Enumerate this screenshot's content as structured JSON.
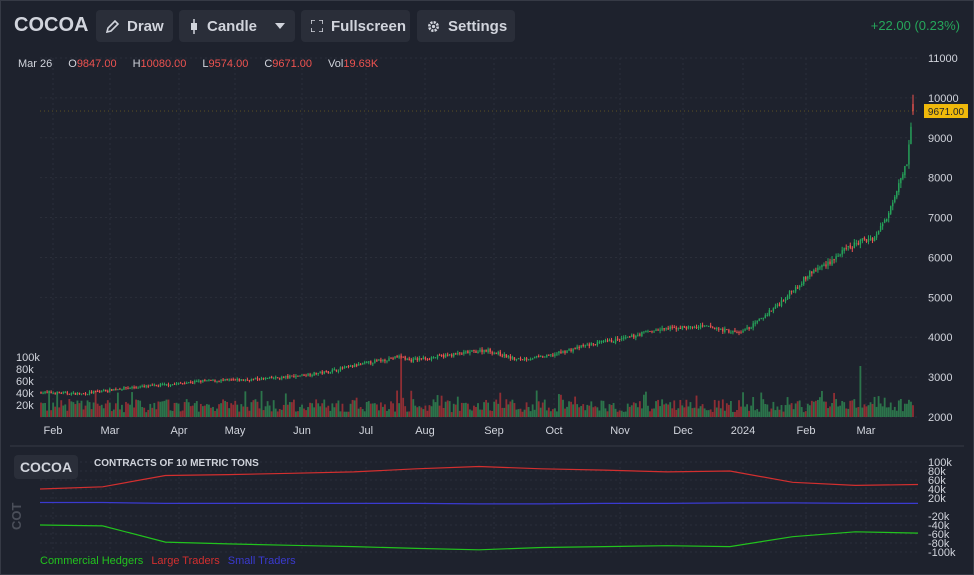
{
  "header": {
    "symbol": "COCOA",
    "draw_label": "Draw",
    "candle_label": "Candle",
    "fullscreen_label": "Fullscreen",
    "settings_label": "Settings",
    "change": "+22.00 (0.23%)"
  },
  "ohlc": {
    "date": "Mar 26",
    "o_label": "O",
    "o": "9847.00",
    "h_label": "H",
    "h": "10080.00",
    "l_label": "L",
    "l": "9574.00",
    "c_label": "C",
    "c": "9671.00",
    "vol_label": "Vol",
    "vol": "19.68K"
  },
  "last_price_tag": "9671.00",
  "colors": {
    "background": "#1e222d",
    "up": "#26a65b",
    "down": "#ef5350",
    "price_tag": "#f0b90b",
    "commercial": "#22c31e",
    "large": "#d32f2f",
    "small": "#3a3ad0"
  },
  "cot": {
    "badge": "COCOA",
    "title": "CONTRACTS OF 10 METRIC TONS",
    "side_label": "COT",
    "legend": [
      "Commercial Hedgers",
      "Large Traders",
      "Small Traders"
    ]
  },
  "chart_data": [
    {
      "type": "candlestick",
      "title": "COCOA",
      "x_tick_labels": [
        "Feb",
        "Mar",
        "Apr",
        "May",
        "Jun",
        "Jul",
        "Aug",
        "Sep",
        "Oct",
        "Nov",
        "Dec",
        "2024",
        "Feb",
        "Mar"
      ],
      "y_ticks": [
        2000,
        3000,
        4000,
        5000,
        6000,
        7000,
        8000,
        9000,
        10000,
        11000
      ],
      "ylim": [
        2000,
        11000
      ],
      "volume_ticks": [
        "20k",
        "40k",
        "60k",
        "80k",
        "100k"
      ],
      "volume_ylim": [
        0,
        100000
      ],
      "close_path": [
        [
          "Feb",
          2600
        ],
        [
          "Mar",
          2700
        ],
        [
          "Apr",
          2850
        ],
        [
          "May",
          2950
        ],
        [
          "Jun",
          3000
        ],
        [
          "Jul",
          3350
        ],
        [
          "Aug",
          3450
        ],
        [
          "Sep",
          3600
        ],
        [
          "Oct",
          3450
        ],
        [
          "Nov",
          3800
        ],
        [
          "Dec",
          4200
        ],
        [
          "2024",
          4250
        ],
        [
          "Feb",
          5500
        ],
        [
          "Mar",
          6200
        ],
        [
          "Mar 26",
          9671
        ]
      ],
      "last": {
        "open": 9847,
        "high": 10080,
        "low": 9574,
        "close": 9671,
        "volume": 19680
      }
    },
    {
      "type": "line",
      "title": "CONTRACTS OF 10 METRIC TONS",
      "y_ticks": [
        "100k",
        "80k",
        "60k",
        "40k",
        "20k",
        "-20k",
        "-40k",
        "-60k",
        "-80k",
        "-100k"
      ],
      "ylim": [
        -100000,
        100000
      ],
      "series": [
        {
          "name": "Large Traders",
          "values": [
            40000,
            45000,
            70000,
            72000,
            75000,
            78000,
            85000,
            90000,
            85000,
            82000,
            78000,
            80000,
            55000,
            48000,
            50000
          ]
        },
        {
          "name": "Small Traders",
          "values": [
            10000,
            10000,
            8000,
            8000,
            8000,
            8000,
            8000,
            7000,
            7000,
            8000,
            8000,
            9000,
            9000,
            8000,
            8000
          ]
        },
        {
          "name": "Commercial Hedgers",
          "values": [
            -40000,
            -42000,
            -78000,
            -82000,
            -85000,
            -88000,
            -92000,
            -95000,
            -90000,
            -88000,
            -86000,
            -88000,
            -66000,
            -55000,
            -58000
          ]
        }
      ]
    }
  ]
}
